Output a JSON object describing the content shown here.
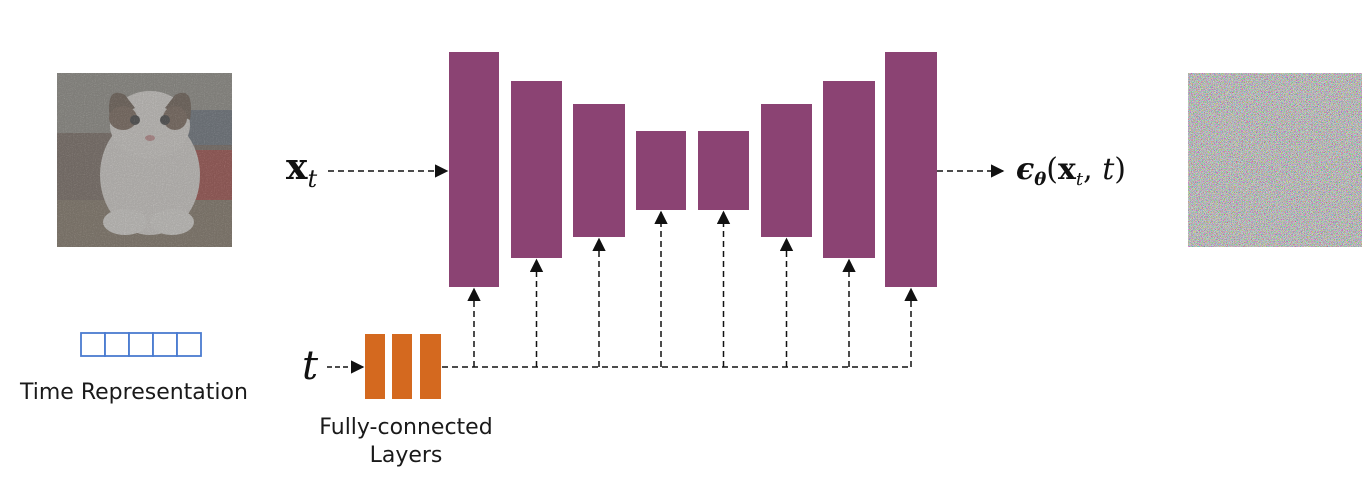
{
  "input_math": {
    "x": "x",
    "t": "t"
  },
  "output_math": {
    "eps": "ϵ",
    "theta": "θ",
    "open": "(",
    "x": "x",
    "t_sub": "t",
    "comma": ", ",
    "t": "t",
    "close": ")"
  },
  "t_math": "t",
  "time_representation_label": "Time Representation",
  "fc_label_line1": "Fully-connected",
  "fc_label_line2": "Layers",
  "colors": {
    "unet_block": "#8b4373",
    "fc_layer": "#d4691f",
    "time_cells": "#4a7bd0",
    "arrow": "#111111"
  },
  "unet_block_count": 8,
  "time_cell_count": 5,
  "fc_layer_count": 3
}
